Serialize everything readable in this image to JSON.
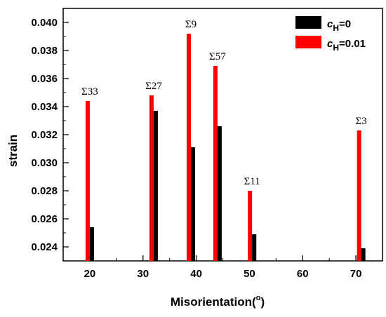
{
  "chart_data": {
    "type": "bar",
    "xlabel_prefix": "Misorientation(",
    "xlabel_degree": "o",
    "xlabel_suffix": ")",
    "ylabel": "strain",
    "xlim": [
      15,
      75
    ],
    "ylim": [
      0.023,
      0.041
    ],
    "x_ticks": [
      20,
      30,
      40,
      50,
      60,
      70
    ],
    "y_ticks": [
      0.024,
      0.026,
      0.028,
      0.03,
      0.032,
      0.034,
      0.036,
      0.038,
      0.04
    ],
    "y_tick_labels": [
      "0.024",
      "0.026",
      "0.028",
      "0.030",
      "0.032",
      "0.034",
      "0.036",
      "0.038",
      "0.040"
    ],
    "x": [
      20,
      32,
      39,
      44,
      50.5,
      71
    ],
    "series": [
      {
        "name_italic": "c",
        "name_sub": "H",
        "name_rest": "=0",
        "color": "#000000",
        "values": [
          0.0254,
          0.0337,
          0.0311,
          0.0326,
          0.0249,
          0.0239
        ]
      },
      {
        "name_italic": "c",
        "name_sub": "H",
        "name_rest": "=0.01",
        "color": "#ff0000",
        "values": [
          0.0344,
          0.0348,
          0.0392,
          0.0369,
          0.028,
          0.0323
        ]
      }
    ],
    "annotations": [
      "Σ33",
      "Σ27",
      "Σ9",
      "Σ57",
      "Σ11",
      "Σ3"
    ],
    "legend_position": "top-right",
    "grid": false
  }
}
